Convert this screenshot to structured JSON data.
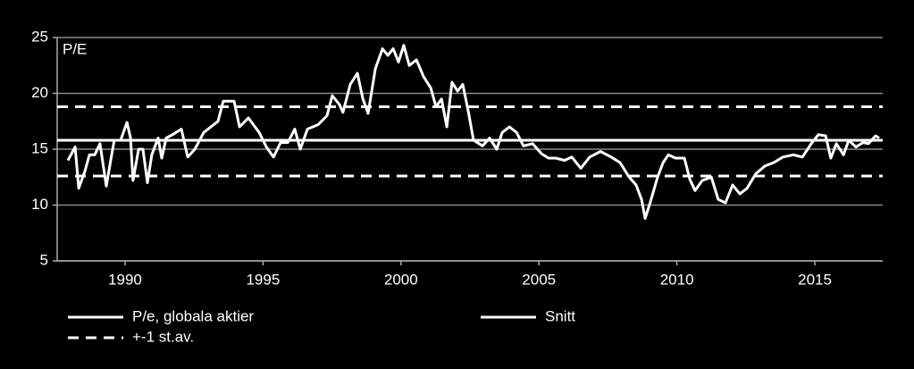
{
  "chart_data": {
    "type": "line",
    "annotation": "P/E",
    "xlim": [
      1987.54,
      2017.46
    ],
    "xticks": [
      1990,
      1995,
      2000,
      2005,
      2010,
      2015
    ],
    "ylim": [
      5,
      25
    ],
    "yticks": [
      5,
      10,
      15,
      20,
      25
    ],
    "grid": true,
    "series": [
      {
        "name": "P/e, globala aktier",
        "color": "#ffffff",
        "x": [
          1987.93,
          1988.19,
          1988.32,
          1988.54,
          1988.71,
          1988.9,
          1989.09,
          1989.32,
          1989.48,
          1989.61,
          1989.84,
          1990.07,
          1990.2,
          1990.29,
          1990.49,
          1990.65,
          1990.81,
          1990.97,
          1991.2,
          1991.33,
          1991.49,
          1991.72,
          1992.04,
          1992.27,
          1992.53,
          1992.85,
          1993.11,
          1993.37,
          1993.56,
          1993.95,
          1994.15,
          1994.47,
          1994.86,
          1995.12,
          1995.38,
          1995.64,
          1995.9,
          1996.15,
          1996.35,
          1996.61,
          1997.0,
          1997.32,
          1997.51,
          1997.77,
          1997.9,
          1998.16,
          1998.42,
          1998.62,
          1998.81,
          1999.07,
          1999.33,
          1999.52,
          1999.72,
          1999.91,
          2000.1,
          2000.3,
          2000.56,
          2000.82,
          2001.08,
          2001.27,
          2001.47,
          2001.66,
          2001.85,
          2002.05,
          2002.24,
          2002.44,
          2002.63,
          2002.96,
          2003.21,
          2003.47,
          2003.67,
          2003.93,
          2004.19,
          2004.44,
          2004.77,
          2005.09,
          2005.35,
          2005.61,
          2005.93,
          2006.19,
          2006.52,
          2006.84,
          2007.23,
          2007.62,
          2007.94,
          2008.27,
          2008.52,
          2008.72,
          2008.85,
          2009.04,
          2009.3,
          2009.5,
          2009.69,
          2009.95,
          2010.27,
          2010.47,
          2010.66,
          2010.92,
          2011.25,
          2011.5,
          2011.76,
          2012.02,
          2012.28,
          2012.54,
          2012.86,
          2013.19,
          2013.51,
          2013.84,
          2014.22,
          2014.55,
          2014.87,
          2015.13,
          2015.39,
          2015.58,
          2015.78,
          2016.04,
          2016.23,
          2016.49,
          2016.75,
          2016.94,
          2017.2,
          2017.33
        ],
        "values": [
          14,
          15.2,
          11.5,
          13,
          14.5,
          14.5,
          15.5,
          11.7,
          14,
          15.8,
          15.8,
          17.4,
          16,
          12.2,
          15,
          15,
          12,
          14.5,
          16,
          14.2,
          16,
          16.3,
          16.8,
          14.3,
          15,
          16.5,
          17,
          17.5,
          19.3,
          19.3,
          17,
          17.8,
          16.5,
          15.2,
          14.3,
          15.6,
          15.6,
          16.8,
          15,
          16.8,
          17.2,
          18,
          19.8,
          19,
          18.3,
          20.8,
          21.8,
          19.5,
          18.2,
          22.2,
          24,
          23.4,
          24,
          22.8,
          24.3,
          22.5,
          23,
          21.5,
          20.5,
          18.8,
          19.5,
          17,
          21,
          20.2,
          20.8,
          18.4,
          15.8,
          15.3,
          16,
          15,
          16.5,
          17,
          16.5,
          15.3,
          15.5,
          14.6,
          14.2,
          14.2,
          14,
          14.3,
          13.3,
          14.3,
          14.8,
          14.3,
          13.8,
          12.5,
          11.8,
          10.5,
          8.8,
          10.3,
          12.5,
          13.8,
          14.5,
          14.2,
          14.2,
          12.3,
          11.3,
          12.2,
          12.5,
          10.5,
          10.2,
          11.8,
          11,
          11.5,
          12.8,
          13.5,
          13.8,
          14.3,
          14.5,
          14.3,
          15.5,
          16.3,
          16.2,
          14.2,
          15.5,
          14.5,
          15.8,
          15.2,
          15.6,
          15.5,
          16.2,
          16
        ]
      }
    ],
    "reference_lines": [
      {
        "name": "Snitt",
        "style": "solid",
        "color": "#ffffff",
        "values": [
          15.8
        ]
      },
      {
        "name": "+-1 st.av.",
        "style": "dashed",
        "color": "#ffffff",
        "values": [
          18.8,
          12.6
        ]
      }
    ]
  }
}
